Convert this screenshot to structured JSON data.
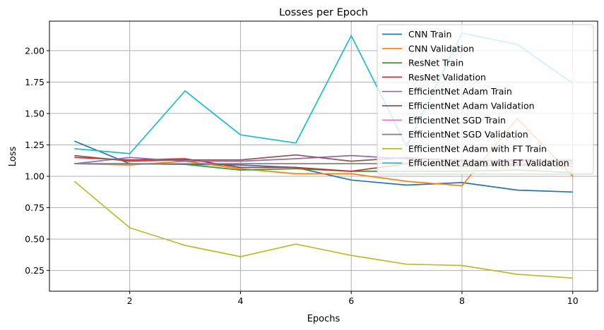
{
  "chart_data": {
    "type": "line",
    "title": "Losses per Epoch",
    "xlabel": "Epochs",
    "ylabel": "Loss",
    "xlim": [
      0.55,
      10.45
    ],
    "ylim": [
      0.085,
      2.235
    ],
    "xticks": [
      2,
      4,
      6,
      8,
      10
    ],
    "xtick_labels": [
      "2",
      "4",
      "6",
      "8",
      "10"
    ],
    "yticks": [
      0.25,
      0.5,
      0.75,
      1.0,
      1.25,
      1.5,
      1.75,
      2.0
    ],
    "ytick_labels": [
      "0.25",
      "0.50",
      "0.75",
      "1.00",
      "1.25",
      "1.50",
      "1.75",
      "2.00"
    ],
    "grid": true,
    "legend_position": "top-right",
    "x": [
      1,
      2,
      3,
      4,
      5,
      6,
      7,
      8,
      9,
      10
    ],
    "series": [
      {
        "name": "CNN Train",
        "color": "#1f77b4",
        "values": [
          1.28,
          1.1,
          1.095,
          1.09,
          1.07,
          0.97,
          0.93,
          0.95,
          0.89,
          0.875
        ]
      },
      {
        "name": "CNN Validation",
        "color": "#ff7f0e",
        "values": [
          1.1,
          1.09,
          1.12,
          1.06,
          1.02,
          1.02,
          0.96,
          0.925,
          1.46,
          1.0
        ]
      },
      {
        "name": "ResNet Train",
        "color": "#2ca02c",
        "values": [
          1.1,
          1.1,
          1.095,
          1.05,
          1.06,
          1.04,
          1.04,
          1.04,
          1.05,
          1.03
        ]
      },
      {
        "name": "ResNet Validation",
        "color": "#d62728",
        "values": [
          1.15,
          1.13,
          1.14,
          1.07,
          1.07,
          1.04,
          1.1,
          1.08,
          1.09,
          1.08
        ]
      },
      {
        "name": "EfficientNet Adam Train",
        "color": "#9467bd",
        "values": [
          1.1,
          1.15,
          1.12,
          1.12,
          1.14,
          1.165,
          1.14,
          1.13,
          1.12,
          1.13
        ]
      },
      {
        "name": "EfficientNet Adam Validation",
        "color": "#8c564b",
        "values": [
          1.165,
          1.12,
          1.13,
          1.13,
          1.17,
          1.12,
          1.15,
          1.12,
          1.13,
          1.12
        ]
      },
      {
        "name": "EfficientNet SGD Train",
        "color": "#e377c2",
        "values": [
          1.1,
          1.1,
          1.1,
          1.1,
          1.1,
          1.1,
          1.1,
          1.1,
          1.1,
          1.1
        ]
      },
      {
        "name": "EfficientNet SGD Validation",
        "color": "#7f7f7f",
        "values": [
          1.1,
          1.1,
          1.1,
          1.1,
          1.1,
          1.1,
          1.1,
          1.1,
          1.1,
          1.1
        ]
      },
      {
        "name": "EfficientNet Adam with FT Train",
        "color": "#bcbd22",
        "values": [
          0.96,
          0.59,
          0.45,
          0.36,
          0.46,
          0.37,
          0.3,
          0.29,
          0.22,
          0.19
        ]
      },
      {
        "name": "EfficientNet Adam with FT Validation",
        "color": "#17becf",
        "values": [
          1.22,
          1.18,
          1.68,
          1.33,
          1.265,
          2.12,
          1.24,
          2.14,
          2.05,
          1.74
        ]
      }
    ]
  }
}
